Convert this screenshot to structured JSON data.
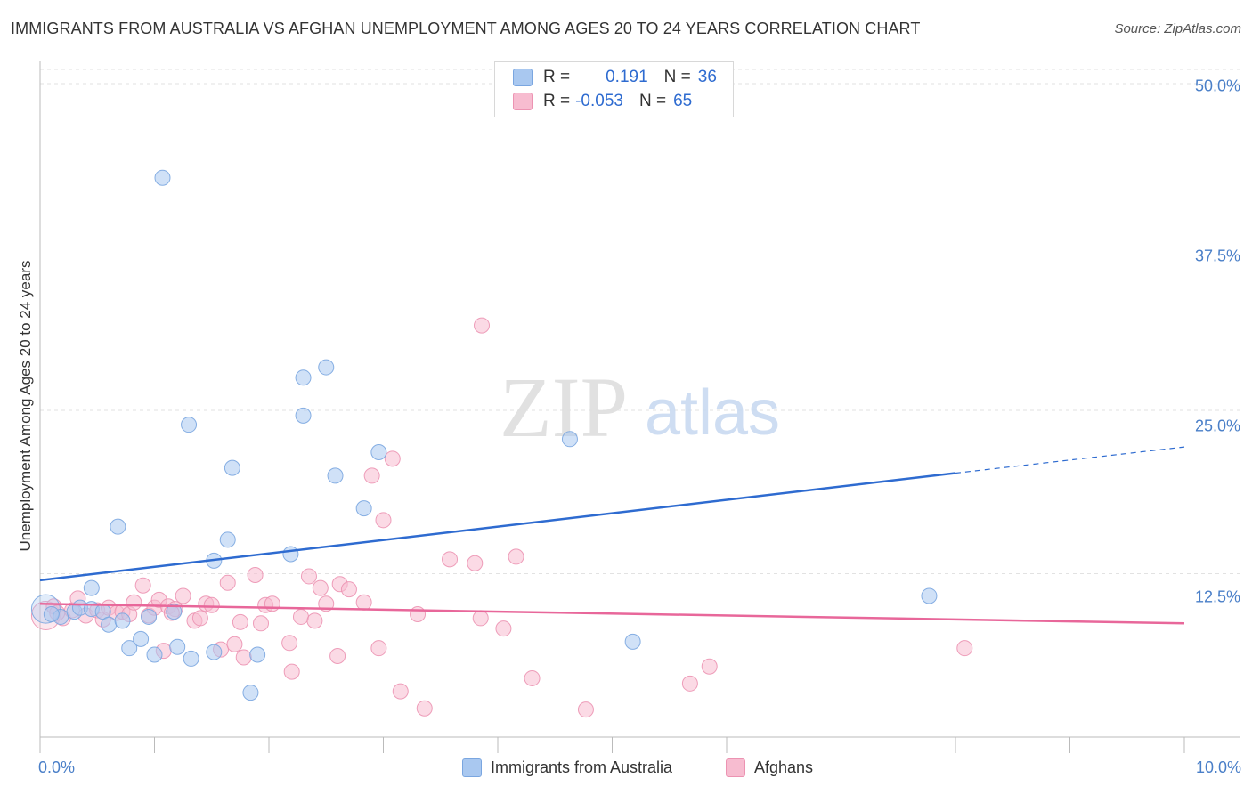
{
  "title": "IMMIGRANTS FROM AUSTRALIA VS AFGHAN UNEMPLOYMENT AMONG AGES 20 TO 24 YEARS CORRELATION CHART",
  "source": "Source: ZipAtlas.com",
  "watermark": {
    "zip": "ZIP",
    "atlas": "atlas"
  },
  "legend": {
    "rows": [
      {
        "r_label": "R =",
        "r_value": "0.191",
        "n_label": "N =",
        "n_value": "36"
      },
      {
        "r_label": "R =",
        "r_value": "-0.053",
        "n_label": "N =",
        "n_value": "65"
      }
    ]
  },
  "bottom_legend": [
    "Immigrants from Australia",
    "Afghans"
  ],
  "colors": {
    "australia_fill": "#a9c8f0",
    "australia_stroke": "#7aa6e0",
    "australia_line": "#2e6bd0",
    "afghans_fill": "#f7bcd0",
    "afghans_stroke": "#ec93b2",
    "afghans_line": "#e8679a",
    "tick_text": "#4a7fc8"
  },
  "chart_data": {
    "type": "scatter",
    "title": "IMMIGRANTS FROM AUSTRALIA VS AFGHAN UNEMPLOYMENT AMONG AGES 20 TO 24 YEARS CORRELATION CHART",
    "xlabel": "",
    "ylabel": "Unemployment Among Ages 20 to 24 years",
    "xlim": [
      0,
      10
    ],
    "ylim": [
      0,
      51.5
    ],
    "x_tick_labels": [
      {
        "value": 0,
        "label": "0.0%"
      },
      {
        "value": 10,
        "label": "10.0%"
      }
    ],
    "y_tick_labels": [
      {
        "value": 12.5,
        "label": "12.5%"
      },
      {
        "value": 25.0,
        "label": "25.0%"
      },
      {
        "value": 37.5,
        "label": "37.5%"
      },
      {
        "value": 50.0,
        "label": "50.0%"
      }
    ],
    "x_minor_ticks": [
      1,
      2,
      3,
      4,
      5,
      6,
      7,
      8,
      9,
      10
    ],
    "series": [
      {
        "name": "Immigrants from Australia",
        "r": 0.191,
        "n": 36,
        "trend": {
          "x0": 0,
          "y0": 12.0,
          "x1": 8.0,
          "y1": 20.2,
          "dash_to_x": 10.0,
          "dash_to_y": 22.2
        },
        "points": [
          {
            "x": 0.05,
            "y": 9.8,
            "big": true
          },
          {
            "x": 0.18,
            "y": 9.2
          },
          {
            "x": 0.3,
            "y": 9.6
          },
          {
            "x": 0.35,
            "y": 9.9
          },
          {
            "x": 0.45,
            "y": 9.8
          },
          {
            "x": 0.45,
            "y": 11.4
          },
          {
            "x": 0.55,
            "y": 9.6
          },
          {
            "x": 0.6,
            "y": 8.6
          },
          {
            "x": 0.68,
            "y": 16.1
          },
          {
            "x": 0.72,
            "y": 8.9
          },
          {
            "x": 0.78,
            "y": 6.8
          },
          {
            "x": 0.88,
            "y": 7.5
          },
          {
            "x": 0.95,
            "y": 9.2
          },
          {
            "x": 1.0,
            "y": 6.3
          },
          {
            "x": 1.07,
            "y": 42.8
          },
          {
            "x": 1.17,
            "y": 9.6
          },
          {
            "x": 1.2,
            "y": 6.9
          },
          {
            "x": 1.3,
            "y": 23.9
          },
          {
            "x": 1.32,
            "y": 6.0
          },
          {
            "x": 1.52,
            "y": 13.5
          },
          {
            "x": 1.52,
            "y": 6.5
          },
          {
            "x": 1.64,
            "y": 15.1
          },
          {
            "x": 1.68,
            "y": 20.6
          },
          {
            "x": 1.9,
            "y": 6.3
          },
          {
            "x": 1.84,
            "y": 3.4
          },
          {
            "x": 2.19,
            "y": 14.0
          },
          {
            "x": 2.3,
            "y": 27.5
          },
          {
            "x": 2.3,
            "y": 24.6
          },
          {
            "x": 2.5,
            "y": 28.3
          },
          {
            "x": 2.58,
            "y": 20.0
          },
          {
            "x": 2.83,
            "y": 17.5
          },
          {
            "x": 2.96,
            "y": 21.8
          },
          {
            "x": 4.63,
            "y": 22.8
          },
          {
            "x": 5.18,
            "y": 7.3
          },
          {
            "x": 7.77,
            "y": 10.8
          },
          {
            "x": 0.1,
            "y": 9.4
          }
        ]
      },
      {
        "name": "Afghans",
        "r": -0.053,
        "n": 65,
        "trend": {
          "x0": 0,
          "y0": 10.2,
          "x1": 10.0,
          "y1": 8.7
        },
        "points": [
          {
            "x": 0.05,
            "y": 9.3,
            "big": true
          },
          {
            "x": 0.12,
            "y": 10.0
          },
          {
            "x": 0.2,
            "y": 9.1
          },
          {
            "x": 0.28,
            "y": 9.7
          },
          {
            "x": 0.33,
            "y": 10.6
          },
          {
            "x": 0.4,
            "y": 9.3
          },
          {
            "x": 0.5,
            "y": 9.7
          },
          {
            "x": 0.55,
            "y": 9.0
          },
          {
            "x": 0.6,
            "y": 9.9
          },
          {
            "x": 0.67,
            "y": 9.5
          },
          {
            "x": 0.72,
            "y": 9.6
          },
          {
            "x": 0.78,
            "y": 9.4
          },
          {
            "x": 0.82,
            "y": 10.3
          },
          {
            "x": 0.9,
            "y": 11.6
          },
          {
            "x": 0.95,
            "y": 9.3
          },
          {
            "x": 1.0,
            "y": 9.9
          },
          {
            "x": 1.04,
            "y": 10.5
          },
          {
            "x": 1.08,
            "y": 6.6
          },
          {
            "x": 1.12,
            "y": 10.0
          },
          {
            "x": 1.18,
            "y": 9.8
          },
          {
            "x": 1.25,
            "y": 10.8
          },
          {
            "x": 1.35,
            "y": 8.9
          },
          {
            "x": 1.4,
            "y": 9.1
          },
          {
            "x": 1.45,
            "y": 10.2
          },
          {
            "x": 1.5,
            "y": 10.1
          },
          {
            "x": 1.58,
            "y": 6.7
          },
          {
            "x": 1.64,
            "y": 11.8
          },
          {
            "x": 1.7,
            "y": 7.1
          },
          {
            "x": 1.75,
            "y": 8.8
          },
          {
            "x": 1.78,
            "y": 6.1
          },
          {
            "x": 1.88,
            "y": 12.4
          },
          {
            "x": 1.93,
            "y": 8.7
          },
          {
            "x": 1.97,
            "y": 10.1
          },
          {
            "x": 2.03,
            "y": 10.2
          },
          {
            "x": 2.18,
            "y": 7.2
          },
          {
            "x": 2.2,
            "y": 5.0
          },
          {
            "x": 2.28,
            "y": 9.2
          },
          {
            "x": 2.35,
            "y": 12.3
          },
          {
            "x": 2.4,
            "y": 8.9
          },
          {
            "x": 2.45,
            "y": 11.4
          },
          {
            "x": 2.5,
            "y": 10.2
          },
          {
            "x": 2.6,
            "y": 6.2
          },
          {
            "x": 2.62,
            "y": 11.7
          },
          {
            "x": 2.7,
            "y": 11.3
          },
          {
            "x": 2.83,
            "y": 10.3
          },
          {
            "x": 2.9,
            "y": 20.0
          },
          {
            "x": 2.96,
            "y": 6.8
          },
          {
            "x": 3.0,
            "y": 16.6
          },
          {
            "x": 3.08,
            "y": 21.3
          },
          {
            "x": 3.15,
            "y": 3.5
          },
          {
            "x": 3.3,
            "y": 9.4
          },
          {
            "x": 3.36,
            "y": 2.2
          },
          {
            "x": 3.58,
            "y": 13.6
          },
          {
            "x": 3.8,
            "y": 13.3
          },
          {
            "x": 3.85,
            "y": 9.1
          },
          {
            "x": 3.86,
            "y": 31.5
          },
          {
            "x": 4.05,
            "y": 8.3
          },
          {
            "x": 4.16,
            "y": 13.8
          },
          {
            "x": 4.3,
            "y": 4.5
          },
          {
            "x": 4.77,
            "y": 2.1
          },
          {
            "x": 5.68,
            "y": 4.1
          },
          {
            "x": 5.85,
            "y": 5.4
          },
          {
            "x": 8.08,
            "y": 6.8
          },
          {
            "x": 0.15,
            "y": 9.5
          },
          {
            "x": 1.15,
            "y": 9.5
          }
        ]
      }
    ]
  }
}
